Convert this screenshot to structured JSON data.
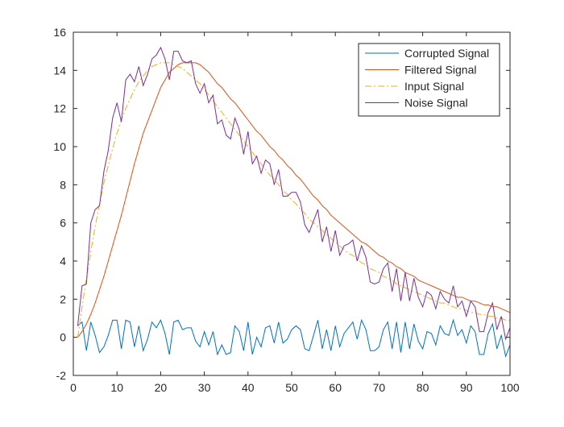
{
  "chart_data": {
    "type": "line",
    "title": "",
    "xlabel": "",
    "ylabel": "",
    "xlim": [
      0,
      100
    ],
    "ylim": [
      -2,
      16
    ],
    "xticks": [
      0,
      10,
      20,
      30,
      40,
      50,
      60,
      70,
      80,
      90,
      100
    ],
    "yticks": [
      -2,
      0,
      2,
      4,
      6,
      8,
      10,
      12,
      14,
      16
    ],
    "grid": false,
    "legend_position": "top-right",
    "colors": {
      "corrupted": "#0072BD",
      "filtered": "#D95319",
      "input": "#EDB120",
      "noise": "#7E2F8E"
    },
    "x": [
      1,
      2,
      3,
      4,
      5,
      6,
      7,
      8,
      9,
      10,
      11,
      12,
      13,
      14,
      15,
      16,
      17,
      18,
      19,
      20,
      21,
      22,
      23,
      24,
      25,
      26,
      27,
      28,
      29,
      30,
      31,
      32,
      33,
      34,
      35,
      36,
      37,
      38,
      39,
      40,
      41,
      42,
      43,
      44,
      45,
      46,
      47,
      48,
      49,
      50,
      51,
      52,
      53,
      54,
      55,
      56,
      57,
      58,
      59,
      60,
      61,
      62,
      63,
      64,
      65,
      66,
      67,
      68,
      69,
      70,
      71,
      72,
      73,
      74,
      75,
      76,
      77,
      78,
      79,
      80,
      81,
      82,
      83,
      84,
      85,
      86,
      87,
      88,
      89,
      90,
      91,
      92,
      93,
      94,
      95,
      96,
      97,
      98,
      99,
      100
    ],
    "series": [
      {
        "name": "Corrupted Signal",
        "color": "#0072BD",
        "style": "solid",
        "values": [
          0.6,
          0.8,
          -0.7,
          0.8,
          0.1,
          -0.8,
          -0.5,
          0.1,
          0.9,
          0.9,
          -0.6,
          0.9,
          0.8,
          -0.5,
          0.6,
          -0.7,
          -0.1,
          0.8,
          0.5,
          0.9,
          0.2,
          -0.9,
          0.8,
          0.9,
          0.4,
          0.5,
          0.5,
          -0.2,
          -0.5,
          0.3,
          -0.4,
          0.3,
          -0.9,
          -0.4,
          -0.9,
          -0.8,
          0.6,
          0.3,
          -0.7,
          0.8,
          -0.9,
          0.0,
          -0.5,
          0.5,
          0.6,
          -0.3,
          0.8,
          -0.3,
          -0.1,
          0.4,
          0.6,
          0.4,
          -0.6,
          -0.7,
          0.1,
          0.9,
          -0.6,
          0.4,
          -0.7,
          0.6,
          -0.5,
          0.2,
          0.5,
          0.8,
          -0.1,
          0.9,
          0.4,
          -0.7,
          -0.7,
          -0.5,
          0.4,
          0.8,
          -0.6,
          0.8,
          -0.8,
          0.8,
          -0.6,
          0.7,
          -0.2,
          -0.6,
          0.3,
          0.2,
          -0.4,
          0.6,
          0.2,
          0.1,
          0.9,
          0.1,
          0.4,
          -0.3,
          0.6,
          0.3,
          -0.9,
          -0.9,
          0.2,
          0.7,
          -0.6,
          0.1,
          -1.0,
          -0.4
        ]
      },
      {
        "name": "Filtered Signal",
        "color": "#D95319",
        "style": "solid",
        "values": [
          0.0,
          0.3,
          0.7,
          1.2,
          1.8,
          2.5,
          3.2,
          4.0,
          4.8,
          5.6,
          6.4,
          7.3,
          8.2,
          9.1,
          9.9,
          10.7,
          11.3,
          11.9,
          12.5,
          13.1,
          13.5,
          13.9,
          14.1,
          14.3,
          14.4,
          14.4,
          14.4,
          14.4,
          14.3,
          14.1,
          13.9,
          13.6,
          13.3,
          13.1,
          12.8,
          12.5,
          12.3,
          12.0,
          11.7,
          11.4,
          11.1,
          10.8,
          10.6,
          10.3,
          10.0,
          9.8,
          9.5,
          9.3,
          9.0,
          8.8,
          8.5,
          8.3,
          8.0,
          7.7,
          7.4,
          7.2,
          6.9,
          6.7,
          6.4,
          6.2,
          6.0,
          5.8,
          5.6,
          5.4,
          5.2,
          5.0,
          4.9,
          4.7,
          4.5,
          4.3,
          4.2,
          4.0,
          3.9,
          3.7,
          3.6,
          3.4,
          3.3,
          3.2,
          3.0,
          2.9,
          2.8,
          2.7,
          2.6,
          2.5,
          2.4,
          2.3,
          2.2,
          2.1,
          2.1,
          2.0,
          1.9,
          1.9,
          1.8,
          1.7,
          1.7,
          1.6,
          1.6,
          1.5,
          1.4,
          1.3
        ]
      },
      {
        "name": "Input Signal",
        "color": "#EDB120",
        "style": "dashdot",
        "values": [
          0.0,
          1.6,
          3.1,
          4.5,
          5.8,
          7.0,
          8.1,
          9.0,
          9.9,
          10.7,
          11.4,
          12.0,
          12.5,
          13.0,
          13.4,
          13.7,
          14.0,
          14.2,
          14.3,
          14.4,
          14.4,
          14.4,
          14.3,
          14.2,
          14.1,
          13.9,
          13.7,
          13.5,
          13.3,
          13.0,
          12.7,
          12.4,
          12.1,
          11.8,
          11.5,
          11.2,
          10.9,
          10.6,
          10.3,
          10.0,
          9.7,
          9.4,
          9.1,
          8.8,
          8.5,
          8.3,
          8.0,
          7.7,
          7.5,
          7.2,
          7.0,
          6.7,
          6.5,
          6.2,
          6.0,
          5.8,
          5.6,
          5.4,
          5.2,
          5.0,
          4.8,
          4.6,
          4.4,
          4.3,
          4.1,
          3.9,
          3.8,
          3.6,
          3.5,
          3.4,
          3.2,
          3.1,
          3.0,
          2.8,
          2.7,
          2.6,
          2.5,
          2.4,
          2.3,
          2.2,
          2.1,
          2.0,
          1.9,
          1.8,
          1.8,
          1.7,
          1.6,
          1.5,
          1.5,
          1.4,
          1.3,
          1.3,
          1.2,
          1.2,
          1.1,
          1.1,
          1.0,
          1.0,
          0.9,
          0.9
        ]
      },
      {
        "name": "Noise Signal",
        "color": "#7E2F8E",
        "style": "solid",
        "values": [
          0.6,
          2.7,
          2.8,
          6.0,
          6.7,
          6.9,
          8.7,
          9.8,
          11.5,
          12.3,
          11.3,
          13.5,
          13.8,
          13.4,
          14.2,
          13.2,
          13.8,
          14.6,
          14.8,
          15.2,
          14.6,
          13.5,
          15.0,
          15.0,
          14.5,
          14.4,
          14.5,
          13.3,
          12.8,
          13.3,
          12.3,
          12.7,
          11.2,
          11.4,
          10.6,
          10.4,
          11.5,
          10.9,
          9.6,
          10.8,
          9.1,
          9.5,
          8.6,
          9.3,
          9.1,
          8.0,
          8.8,
          7.4,
          7.4,
          7.6,
          7.6,
          7.1,
          5.9,
          5.5,
          6.1,
          6.7,
          5.0,
          5.8,
          4.5,
          5.6,
          4.3,
          4.8,
          4.9,
          5.1,
          4.0,
          4.8,
          4.2,
          2.9,
          2.8,
          2.9,
          3.6,
          3.9,
          2.4,
          3.6,
          1.9,
          3.4,
          1.9,
          3.1,
          2.1,
          1.6,
          2.4,
          2.2,
          1.5,
          2.4,
          2.0,
          1.8,
          2.7,
          1.6,
          1.9,
          1.1,
          1.9,
          1.6,
          0.3,
          0.3,
          1.3,
          1.8,
          0.4,
          1.1,
          -0.1,
          0.5
        ]
      }
    ]
  }
}
